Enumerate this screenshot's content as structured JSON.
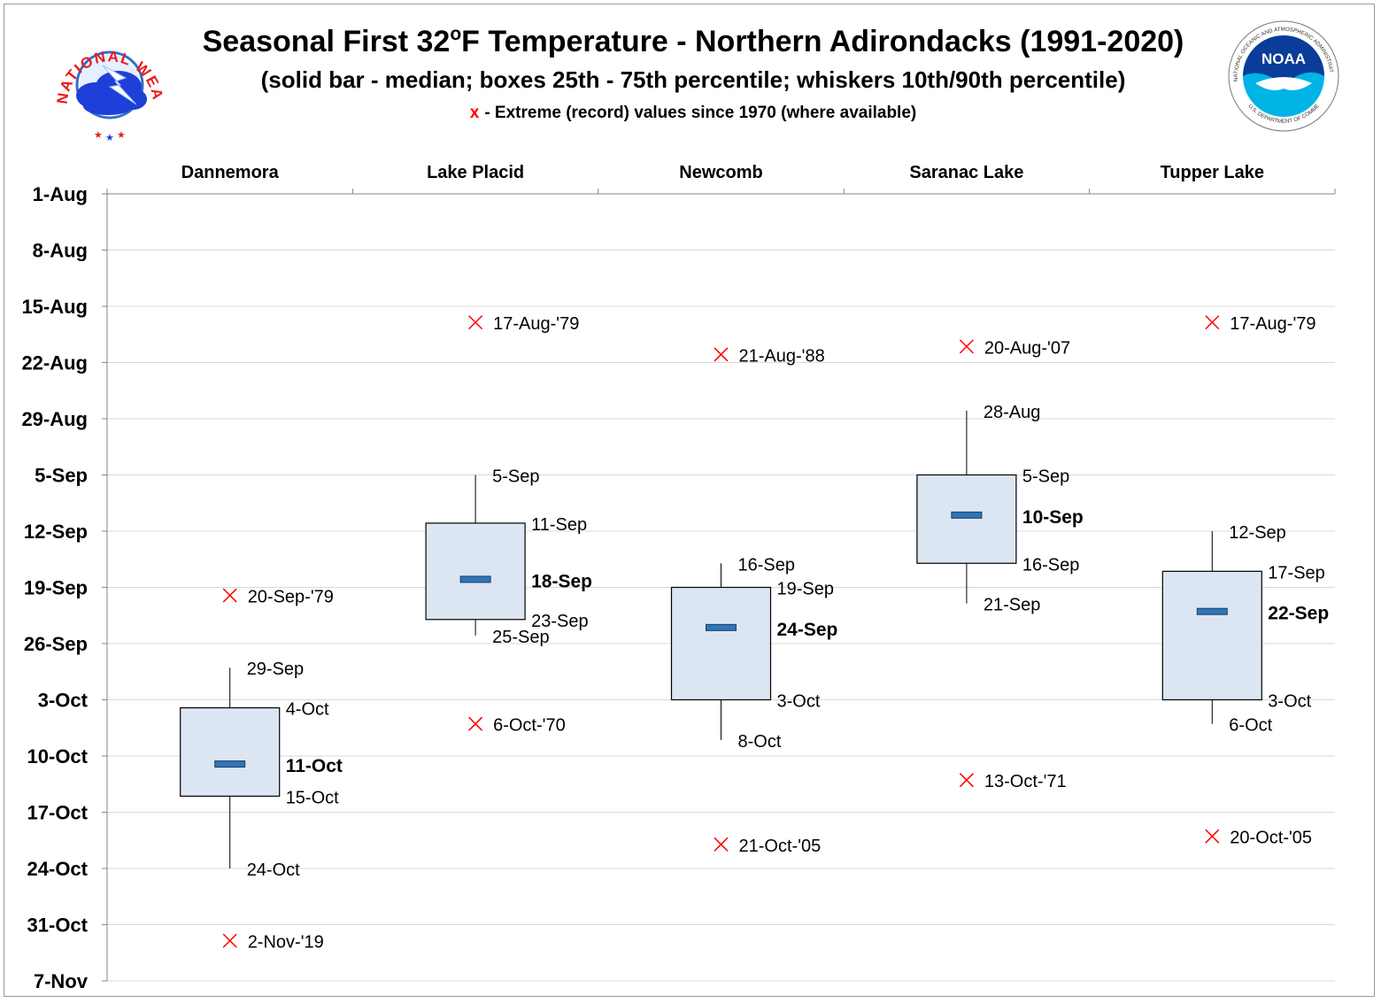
{
  "header": {
    "logo_left_text": "NATIONAL WEATHER SERVICE",
    "logo_right_text": "NOAA",
    "logo_right_ring_text": "NATIONAL OCEANIC AND ATMOSPHERIC ADMINISTRATION",
    "logo_right_ring_text_bottom": "U.S. DEPARTMENT OF COMMERCE"
  },
  "chart_data": {
    "type": "box",
    "title": "Seasonal First 32°F Temperature - Northern Adirondacks (1991-2020)",
    "title_main": "Seasonal First 32",
    "title_sup": "o",
    "title_rest": "F Temperature - Northern Adirondacks (1991-2020)",
    "subtitle": "(solid bar - median; boxes 25th - 75th percentile; whiskers 10th/90th percentile)",
    "note_marker": "x",
    "note_text": "- Extreme (record) values since 1970 (where available)",
    "y_axis": {
      "inverted": true,
      "range": [
        "1-Aug",
        "7-Nov"
      ],
      "ticks": [
        "1-Aug",
        "8-Aug",
        "15-Aug",
        "22-Aug",
        "29-Aug",
        "5-Sep",
        "12-Sep",
        "19-Sep",
        "26-Sep",
        "3-Oct",
        "10-Oct",
        "17-Oct",
        "24-Oct",
        "31-Oct",
        "7-Nov"
      ],
      "tick_days": [
        0,
        7,
        14,
        21,
        28,
        35,
        42,
        49,
        56,
        63,
        70,
        77,
        84,
        91,
        98
      ]
    },
    "grid": true,
    "day_zero": "1-Aug",
    "categories": [
      "Dannemora",
      "Lake Placid",
      "Newcomb",
      "Saranac Lake",
      "Tupper Lake"
    ],
    "colors": {
      "box_fill": "#dce6f2",
      "median_fill": "#2e75b6",
      "extreme": "#ff0000",
      "grid": "#d9d9d9",
      "axis": "#868686"
    },
    "stations": [
      {
        "name": "Dannemora",
        "p10": {
          "day": 59,
          "label": "29-Sep"
        },
        "p25": {
          "day": 64,
          "label": "4-Oct"
        },
        "median": {
          "day": 71,
          "label": "11-Oct"
        },
        "p75": {
          "day": 75,
          "label": "15-Oct"
        },
        "p90": {
          "day": 84,
          "label": "24-Oct"
        },
        "extremes": [
          {
            "day": 50,
            "label": "20-Sep-'79"
          },
          {
            "day": 93,
            "label": "2-Nov-'19"
          }
        ]
      },
      {
        "name": "Lake Placid",
        "p10": {
          "day": 35,
          "label": "5-Sep"
        },
        "p25": {
          "day": 41,
          "label": "11-Sep"
        },
        "median": {
          "day": 48,
          "label": "18-Sep"
        },
        "p75": {
          "day": 53,
          "label": "23-Sep"
        },
        "p90": {
          "day": 55,
          "label": "25-Sep"
        },
        "extremes": [
          {
            "day": 16,
            "label": "17-Aug-'79"
          },
          {
            "day": 66,
            "label": "6-Oct-'70"
          }
        ]
      },
      {
        "name": "Newcomb",
        "p10": {
          "day": 46,
          "label": "16-Sep"
        },
        "p25": {
          "day": 49,
          "label": "19-Sep"
        },
        "median": {
          "day": 54,
          "label": "24-Sep"
        },
        "p75": {
          "day": 63,
          "label": "3-Oct"
        },
        "p90": {
          "day": 68,
          "label": "8-Oct"
        },
        "extremes": [
          {
            "day": 20,
            "label": "21-Aug-'88"
          },
          {
            "day": 81,
            "label": "21-Oct-'05"
          }
        ]
      },
      {
        "name": "Saranac Lake",
        "p10": {
          "day": 27,
          "label": "28-Aug"
        },
        "p25": {
          "day": 35,
          "label": "5-Sep"
        },
        "median": {
          "day": 40,
          "label": "10-Sep"
        },
        "p75": {
          "day": 46,
          "label": "16-Sep"
        },
        "p90": {
          "day": 51,
          "label": "21-Sep"
        },
        "extremes": [
          {
            "day": 19,
            "label": "20-Aug-'07"
          },
          {
            "day": 73,
            "label": "13-Oct-'71"
          }
        ]
      },
      {
        "name": "Tupper Lake",
        "p10": {
          "day": 42,
          "label": "12-Sep"
        },
        "p25": {
          "day": 47,
          "label": "17-Sep"
        },
        "median": {
          "day": 52,
          "label": "22-Sep"
        },
        "p75": {
          "day": 63,
          "label": "3-Oct"
        },
        "p90": {
          "day": 66,
          "label": "6-Oct"
        },
        "extremes": [
          {
            "day": 16,
            "label": "17-Aug-'79"
          },
          {
            "day": 80,
            "label": "20-Oct-'05"
          }
        ]
      }
    ]
  }
}
